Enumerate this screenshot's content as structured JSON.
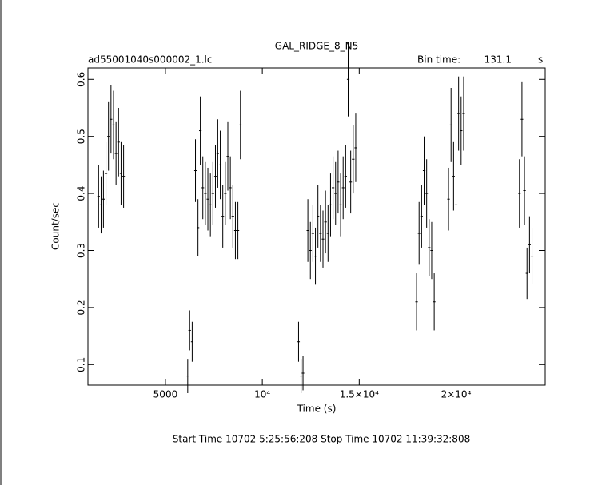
{
  "chart_data": {
    "type": "errorbar",
    "title": "GAL_RIDGE_8_N5",
    "file_label": "ad55001040s000002_1.lc",
    "bin_time_label": "Bin time:",
    "bin_time": 131.1,
    "bin_time_unit": "s",
    "x_label": "Time (s)",
    "y_label": "Count/sec",
    "footer": "Start Time 10702  5:25:56:208    Stop Time 10702 11:39:32:808",
    "color": "#000000",
    "xlim": [
      1000,
      24600
    ],
    "ylim": [
      0.064,
      0.62
    ],
    "xticks": [
      5000,
      {
        "value": 10000,
        "label": "10⁴"
      },
      {
        "value": 15000,
        "label": "1.5×10⁴"
      },
      {
        "value": 20000,
        "label": "2×10⁴"
      }
    ],
    "yticks": [
      0.1,
      0.2,
      0.3,
      0.4,
      0.5,
      0.6
    ],
    "x": [
      1550,
      1680,
      1800,
      1930,
      2060,
      2190,
      2320,
      2450,
      2580,
      2710,
      2840,
      6150,
      6250,
      6380,
      6550,
      6680,
      6800,
      6930,
      7060,
      7190,
      7320,
      7450,
      7580,
      7700,
      7830,
      7960,
      8090,
      8220,
      8350,
      8480,
      8610,
      8740,
      8870,
      11870,
      12000,
      12100,
      12350,
      12480,
      12610,
      12740,
      12870,
      13000,
      13130,
      13260,
      13390,
      13520,
      13650,
      13780,
      13910,
      14040,
      14170,
      14300,
      14430,
      14560,
      14690,
      14820,
      17960,
      18090,
      18220,
      18350,
      18480,
      18610,
      18740,
      18870,
      19610,
      19740,
      19870,
      20000,
      20130,
      20260,
      20390,
      23270,
      23400,
      23530,
      23660,
      23790,
      23920
    ],
    "values": [
      0.395,
      0.38,
      0.39,
      0.435,
      0.5,
      0.53,
      0.52,
      0.47,
      0.49,
      0.435,
      0.43,
      0.08,
      0.16,
      0.14,
      0.44,
      0.34,
      0.51,
      0.41,
      0.4,
      0.39,
      0.38,
      0.4,
      0.43,
      0.47,
      0.45,
      0.36,
      0.4,
      0.465,
      0.41,
      0.36,
      0.335,
      0.335,
      0.52,
      0.14,
      0.08,
      0.085,
      0.335,
      0.3,
      0.33,
      0.29,
      0.36,
      0.33,
      0.32,
      0.35,
      0.33,
      0.38,
      0.41,
      0.4,
      0.42,
      0.38,
      0.41,
      0.43,
      0.6,
      0.42,
      0.46,
      0.48,
      0.21,
      0.33,
      0.36,
      0.44,
      0.4,
      0.305,
      0.3,
      0.21,
      0.39,
      0.52,
      0.43,
      0.38,
      0.54,
      0.51,
      0.54,
      0.4,
      0.53,
      0.405,
      0.26,
      0.31,
      0.29
    ],
    "errors": [
      0.055,
      0.05,
      0.05,
      0.055,
      0.06,
      0.06,
      0.06,
      0.055,
      0.06,
      0.055,
      0.055,
      0.03,
      0.035,
      0.035,
      0.055,
      0.05,
      0.06,
      0.055,
      0.055,
      0.055,
      0.055,
      0.055,
      0.055,
      0.06,
      0.06,
      0.055,
      0.055,
      0.06,
      0.055,
      0.055,
      0.05,
      0.05,
      0.06,
      0.035,
      0.03,
      0.03,
      0.055,
      0.05,
      0.05,
      0.05,
      0.055,
      0.05,
      0.05,
      0.055,
      0.05,
      0.055,
      0.055,
      0.055,
      0.055,
      0.055,
      0.055,
      0.055,
      0.065,
      0.055,
      0.06,
      0.06,
      0.05,
      0.055,
      0.055,
      0.06,
      0.06,
      0.05,
      0.05,
      0.05,
      0.055,
      0.065,
      0.06,
      0.055,
      0.065,
      0.06,
      0.065,
      0.06,
      0.065,
      0.06,
      0.045,
      0.05,
      0.05
    ]
  }
}
